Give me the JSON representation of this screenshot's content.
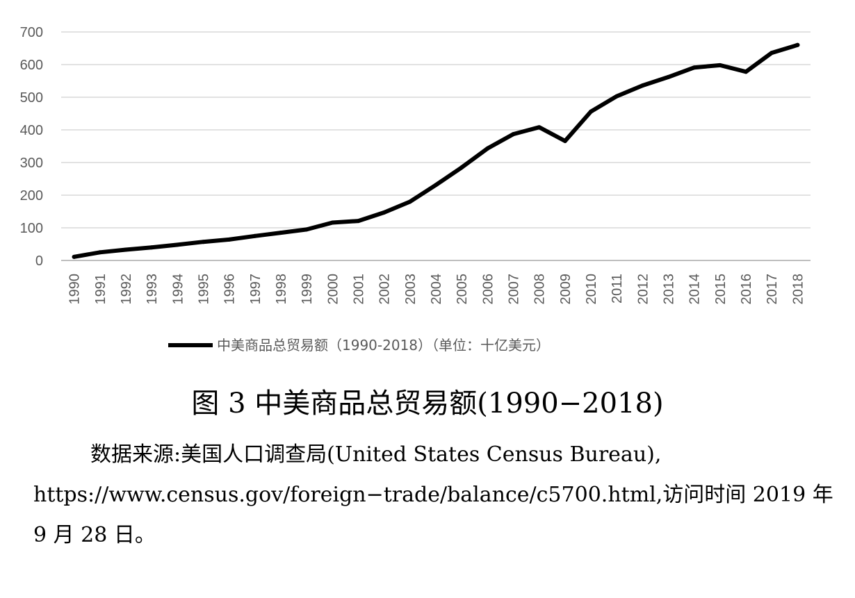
{
  "chart_data": {
    "type": "line",
    "title": "",
    "xlabel": "",
    "ylabel": "",
    "ylim": [
      0,
      700
    ],
    "y_ticks": [
      "0",
      "100",
      "200",
      "300",
      "400",
      "500",
      "600",
      "700"
    ],
    "grid": true,
    "legend_position": "bottom",
    "x": [
      "1990",
      "1991",
      "1992",
      "1993",
      "1994",
      "1995",
      "1996",
      "1997",
      "1998",
      "1999",
      "2000",
      "2001",
      "2002",
      "2003",
      "2004",
      "2005",
      "2006",
      "2007",
      "2008",
      "2009",
      "2010",
      "2011",
      "2012",
      "2013",
      "2014",
      "2015",
      "2016",
      "2017",
      "2018"
    ],
    "series": [
      {
        "name": "中美商品总贸易额（1990-2018）（单位：十亿美元）",
        "color": "#000000",
        "values": [
          11,
          25,
          33,
          40,
          48,
          57,
          64,
          75,
          85,
          95,
          116,
          121,
          147,
          180,
          231,
          285,
          343,
          387,
          408,
          366,
          456,
          503,
          536,
          562,
          591,
          598,
          578,
          636,
          660
        ]
      }
    ]
  },
  "caption": {
    "figure": "图 3 中美商品总贸易额(1990−2018)"
  },
  "source": {
    "text": "数据来源:美国人口调查局(United States Census Bureau), https://www.census.gov/foreign−trade/balance/c5700.html,访问时间 2019 年 9 月 28 日。"
  }
}
